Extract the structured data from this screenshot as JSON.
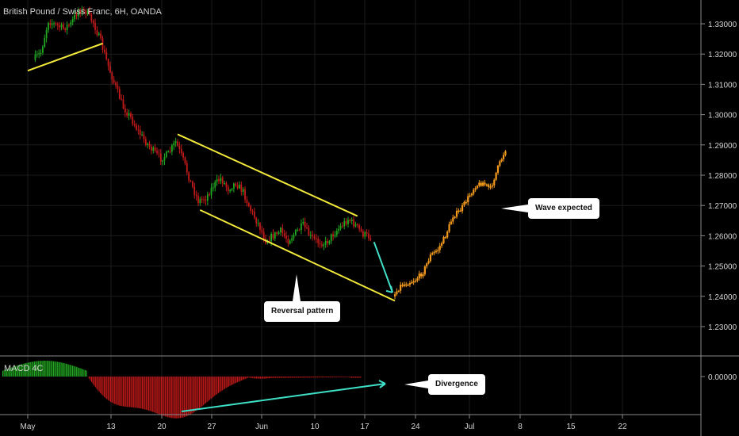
{
  "header": {
    "title": "British Pound / Swiss Franc, 6H, OANDA"
  },
  "macd": {
    "label": "MACD 4C"
  },
  "annotations": {
    "reversal": "Reversal pattern",
    "wave": "Wave expected",
    "divergence": "Divergence"
  },
  "colors": {
    "background": "#000000",
    "up": "#21a821",
    "down": "#c41a1a",
    "channel": "#f2e93a",
    "arrow": "#3fe0c8",
    "projection": "#f39a1d",
    "grid": "#1c1c1c",
    "text": "#d4d4d4"
  },
  "chart_data": {
    "type": "candlestick",
    "instrument": "British Pound / Swiss Franc",
    "timeframe": "6H",
    "broker": "OANDA",
    "y_ticks": [
      "1.33000",
      "1.32000",
      "1.31000",
      "1.30000",
      "1.29000",
      "1.28000",
      "1.27000",
      "1.26000",
      "1.25000",
      "1.24000",
      "1.23000"
    ],
    "macd_ticks": [
      "0.00000"
    ],
    "x_ticks": [
      "May",
      "13",
      "20",
      "27",
      "Jun",
      "10",
      "17",
      "24",
      "Jul",
      "8",
      "15",
      "22"
    ],
    "ylim": [
      1.2195,
      1.3385
    ],
    "price_path": [
      {
        "t": "May 2",
        "v": 1.318
      },
      {
        "t": "May 3",
        "v": 1.3205
      },
      {
        "t": "May 4",
        "v": 1.331
      },
      {
        "t": "May 5",
        "v": 1.3295
      },
      {
        "t": "May 6",
        "v": 1.3285
      },
      {
        "t": "May 7",
        "v": 1.33
      },
      {
        "t": "May 8",
        "v": 1.3345
      },
      {
        "t": "May 9",
        "v": 1.334
      },
      {
        "t": "May 10",
        "v": 1.3305
      },
      {
        "t": "May 11",
        "v": 1.324
      },
      {
        "t": "May 12",
        "v": 1.316
      },
      {
        "t": "May 13",
        "v": 1.309
      },
      {
        "t": "May 14",
        "v": 1.3025
      },
      {
        "t": "May 15",
        "v": 1.299
      },
      {
        "t": "May 16",
        "v": 1.2945
      },
      {
        "t": "May 17",
        "v": 1.291
      },
      {
        "t": "May 18",
        "v": 1.288
      },
      {
        "t": "May 19",
        "v": 1.2855
      },
      {
        "t": "May 20",
        "v": 1.287
      },
      {
        "t": "May 21",
        "v": 1.291
      },
      {
        "t": "May 22",
        "v": 1.285
      },
      {
        "t": "May 23",
        "v": 1.2775
      },
      {
        "t": "May 24",
        "v": 1.2715
      },
      {
        "t": "May 25",
        "v": 1.2725
      },
      {
        "t": "May 26",
        "v": 1.2765
      },
      {
        "t": "May 27",
        "v": 1.279
      },
      {
        "t": "May 28",
        "v": 1.2755
      },
      {
        "t": "May 29",
        "v": 1.2775
      },
      {
        "t": "May 30",
        "v": 1.2745
      },
      {
        "t": "May 31",
        "v": 1.2685
      },
      {
        "t": "Jun 1",
        "v": 1.264
      },
      {
        "t": "Jun 2",
        "v": 1.2585
      },
      {
        "t": "Jun 3",
        "v": 1.26
      },
      {
        "t": "Jun 4",
        "v": 1.2615
      },
      {
        "t": "Jun 5",
        "v": 1.2585
      },
      {
        "t": "Jun 6",
        "v": 1.261
      },
      {
        "t": "Jun 7",
        "v": 1.2635
      },
      {
        "t": "Jun 8",
        "v": 1.2595
      },
      {
        "t": "Jun 9",
        "v": 1.258
      },
      {
        "t": "Jun 10",
        "v": 1.2575
      },
      {
        "t": "Jun 11",
        "v": 1.2605
      },
      {
        "t": "Jun 12",
        "v": 1.263
      },
      {
        "t": "Jun 13",
        "v": 1.2655
      },
      {
        "t": "Jun 14",
        "v": 1.2635
      },
      {
        "t": "Jun 15",
        "v": 1.2605
      },
      {
        "t": "Jun 16",
        "v": 1.2595
      }
    ],
    "projection": [
      {
        "t": "Jun 19",
        "v": 1.24
      },
      {
        "t": "Jun 20",
        "v": 1.2435
      },
      {
        "t": "Jun 21",
        "v": 1.2445
      },
      {
        "t": "Jun 22",
        "v": 1.2455
      },
      {
        "t": "Jun 23",
        "v": 1.248
      },
      {
        "t": "Jun 24",
        "v": 1.2535
      },
      {
        "t": "Jun 25",
        "v": 1.2555
      },
      {
        "t": "Jun 26",
        "v": 1.26
      },
      {
        "t": "Jun 27",
        "v": 1.2665
      },
      {
        "t": "Jun 28",
        "v": 1.2685
      },
      {
        "t": "Jun 29",
        "v": 1.2725
      },
      {
        "t": "Jun 30",
        "v": 1.2765
      },
      {
        "t": "Jul 1",
        "v": 1.2775
      },
      {
        "t": "Jul 2",
        "v": 1.2755
      },
      {
        "t": "Jul 3",
        "v": 1.2825
      },
      {
        "t": "Jul 4",
        "v": 1.2885
      }
    ],
    "channel_pre": [
      {
        "t": "May 1",
        "v": 1.3145
      },
      {
        "t": "May 11",
        "v": 1.3235
      }
    ],
    "channel_upper": [
      {
        "t": "May 21",
        "v": 1.2935
      },
      {
        "t": "Jun 14",
        "v": 1.2665
      }
    ],
    "channel_lower": [
      {
        "t": "May 24",
        "v": 1.2685
      },
      {
        "t": "Jun 19",
        "v": 1.2385
      }
    ],
    "arrow": [
      {
        "t": "Jun 16",
        "v": 1.2595
      },
      {
        "t": "Jun 19",
        "v": 1.2405
      }
    ]
  }
}
